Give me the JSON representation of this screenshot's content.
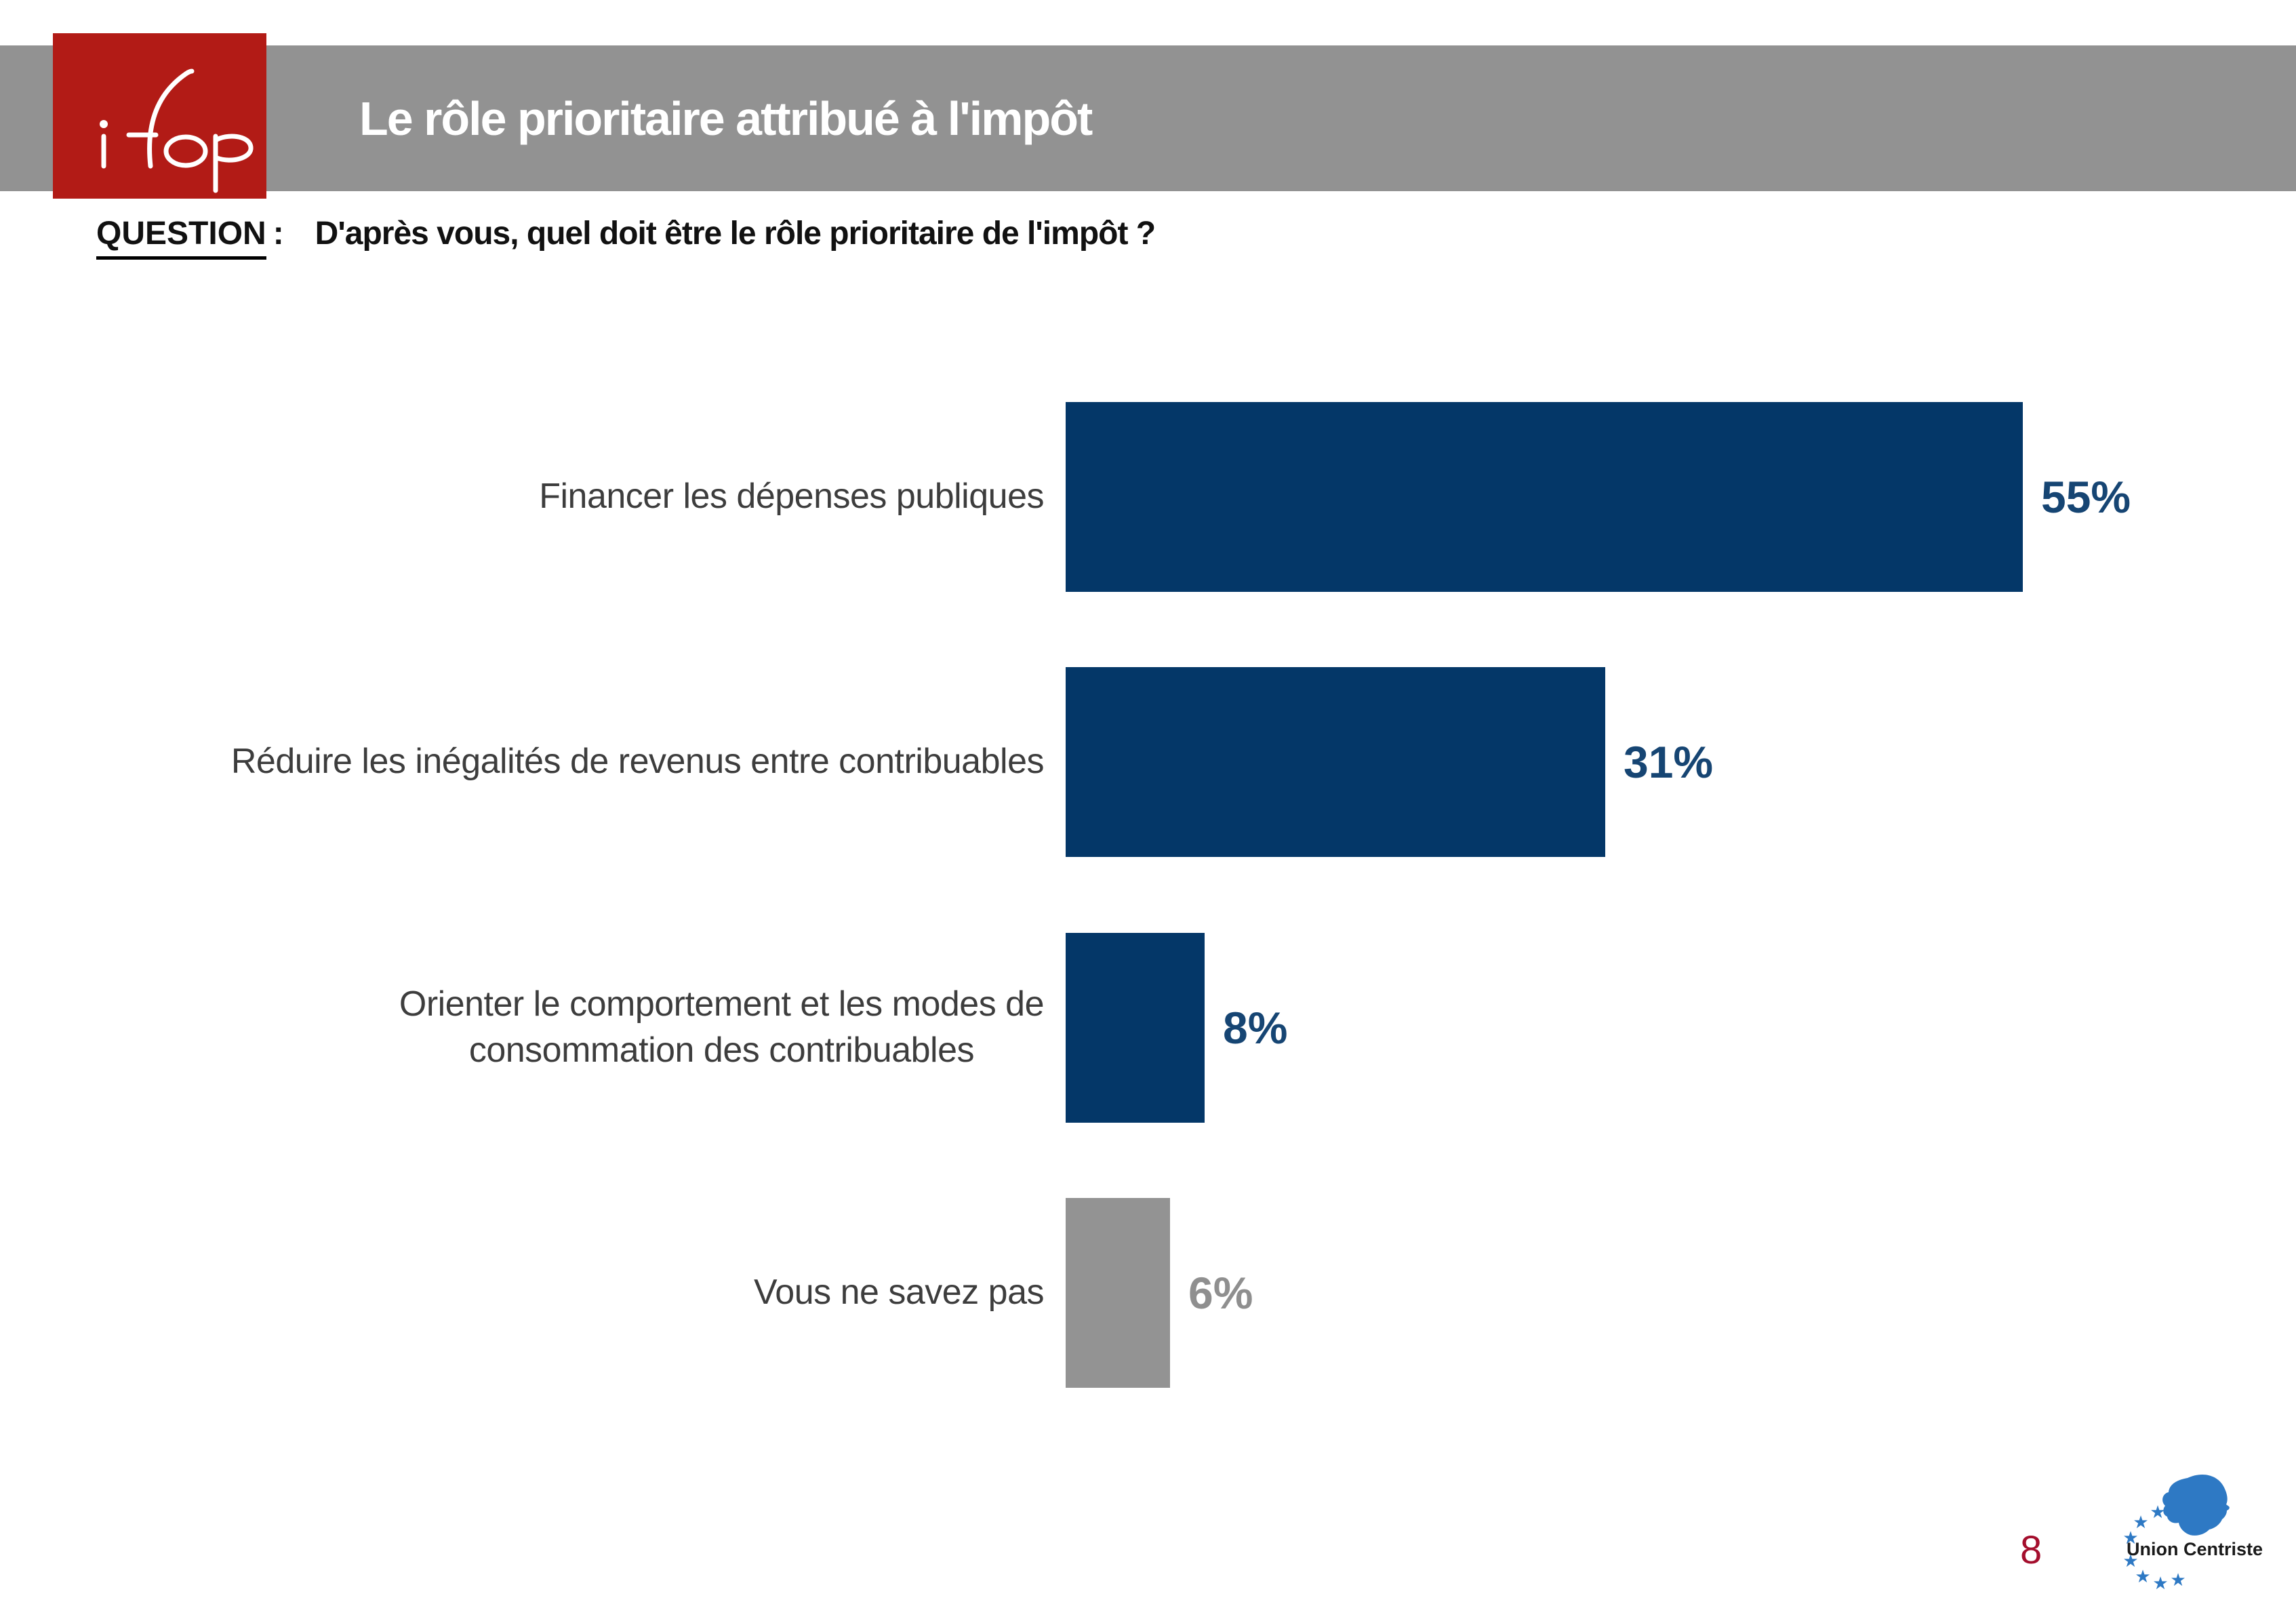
{
  "header": {
    "title": "Le rôle prioritaire attribué à l'impôt",
    "logo_text": "ifop"
  },
  "question": {
    "label": "QUESTION",
    "separator": ":",
    "text": "D'après vous, quel doit être le rôle prioritaire de l'impôt ?"
  },
  "chart_data": {
    "type": "bar",
    "orientation": "horizontal",
    "categories": [
      "Financer les dépenses publiques",
      "Réduire les inégalités de revenus entre contribuables",
      "Orienter le comportement et les modes de\nconsommation des contribuables",
      "Vous ne savez pas"
    ],
    "values": [
      55,
      31,
      8,
      6
    ],
    "value_labels": [
      "55%",
      "31%",
      "8%",
      "6%"
    ],
    "unit": "%",
    "xlim": [
      0,
      55
    ],
    "grid": false,
    "legend": false,
    "bar_colors": [
      "#043768",
      "#043768",
      "#043768",
      "#939393"
    ],
    "value_label_colors": [
      "#164573",
      "#164573",
      "#164573",
      "#8f8f8f"
    ],
    "label_color": "#3d3d3d"
  },
  "footer": {
    "page_number": "8",
    "partner_logo_text": "Union Centriste"
  },
  "colors": {
    "header_bar": "#929292",
    "logo_red": "#b21b16",
    "logo_script": "#ffffff",
    "accent_navy": "#043768",
    "page_number_red": "#a40e2d",
    "partner_blue": "#2e79c4",
    "question_text": "#111111"
  }
}
